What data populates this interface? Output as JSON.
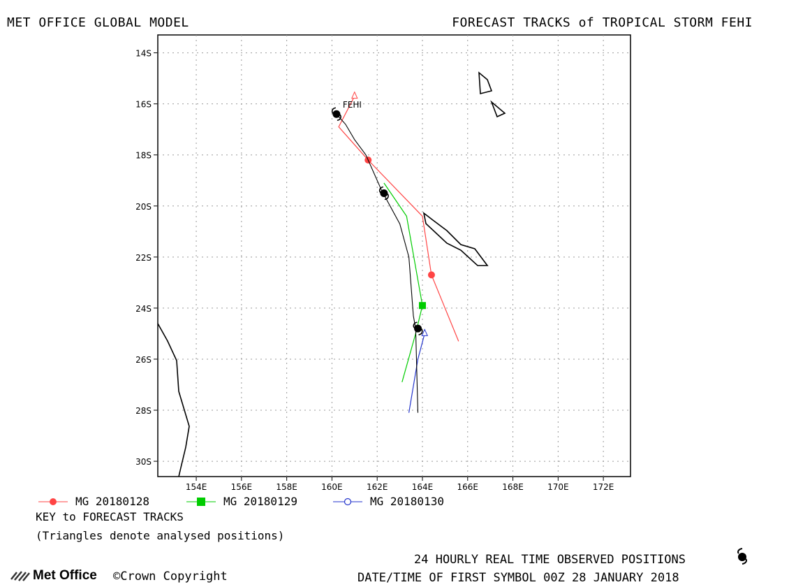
{
  "header": {
    "left_title": "MET OFFICE GLOBAL MODEL",
    "right_title": "FORECAST TRACKS of TROPICAL STORM FEHI"
  },
  "map": {
    "lat_labels": [
      "14S",
      "16S",
      "18S",
      "20S",
      "22S",
      "24S",
      "26S",
      "28S",
      "30S"
    ],
    "lon_labels": [
      "154E",
      "156E",
      "158E",
      "160E",
      "162E",
      "164E",
      "166E",
      "168E",
      "170E",
      "172E"
    ],
    "lat_range": [
      -30.6,
      -13.3
    ],
    "lon_range": [
      152.3,
      173.2
    ],
    "storm_label": "FEHI",
    "colors": {
      "t0128": "#ff4444",
      "t0129": "#00cc00",
      "t0130": "#2233cc",
      "observed": "#000000"
    },
    "tracks": {
      "observed_points": [
        [
          -16.4,
          160.2
        ],
        [
          -19.5,
          162.3
        ],
        [
          -24.8,
          163.8
        ]
      ],
      "observed_line": [
        [
          -28.1,
          163.8
        ],
        [
          -24.8,
          163.7
        ],
        [
          -24.3,
          163.6
        ],
        [
          -22.0,
          163.4
        ],
        [
          -20.7,
          163.0
        ],
        [
          -19.4,
          162.2
        ],
        [
          -18.0,
          161.5
        ],
        [
          -17.4,
          161.0
        ],
        [
          -16.8,
          160.6
        ],
        [
          -16.4,
          160.2
        ]
      ],
      "mg20180128": [
        [
          -15.7,
          161.0
        ],
        [
          -16.9,
          160.3
        ],
        [
          -18.2,
          161.6
        ],
        [
          -20.4,
          164.0
        ],
        [
          -22.7,
          164.4
        ],
        [
          -25.3,
          165.6
        ]
      ],
      "mg20180128_markers": [
        [
          -18.2,
          161.6
        ],
        [
          -22.7,
          164.4
        ]
      ],
      "mg20180129": [
        [
          -19.1,
          162.3
        ],
        [
          -20.4,
          163.3
        ],
        [
          -23.9,
          164.0
        ],
        [
          -25.0,
          163.7
        ],
        [
          -26.9,
          163.1
        ]
      ],
      "mg20180129_markers": [
        [
          -23.9,
          164.0
        ]
      ],
      "mg20180130": [
        [
          -25.0,
          164.1
        ],
        [
          -26.0,
          163.8
        ],
        [
          -28.1,
          163.4
        ]
      ],
      "mg20180130_markers": [
        [
          -25.0,
          164.1
        ]
      ]
    }
  },
  "legend": [
    {
      "label": "MG 20180128",
      "color": "#ff4444",
      "marker": "circle"
    },
    {
      "label": "MG 20180129",
      "color": "#00cc00",
      "marker": "square"
    },
    {
      "label": "MG 20180130",
      "color": "#2233cc",
      "marker": "open-circle"
    }
  ],
  "key": {
    "line1": "KEY to FORECAST TRACKS",
    "line2": "(Triangles denote analysed positions)"
  },
  "footer": {
    "observed_label": "24 HOURLY REAL TIME OBSERVED POSITIONS",
    "datetime_label": "DATE/TIME OF FIRST SYMBOL 00Z 28 JANUARY 2018",
    "logo_text": "Met Office",
    "copyright": "©Crown Copyright"
  }
}
